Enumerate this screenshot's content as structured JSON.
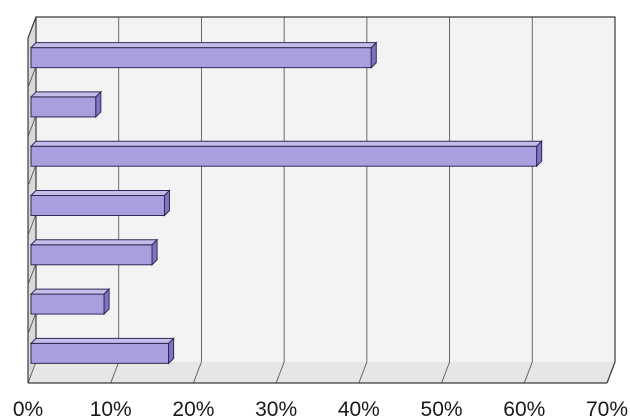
{
  "chart_data": {
    "type": "bar",
    "orientation": "horizontal",
    "style": "3d",
    "categories": [
      "",
      "",
      "",
      "",
      "",
      "",
      ""
    ],
    "values": [
      41.5,
      8.2,
      61.5,
      16.5,
      15,
      9.2,
      17
    ],
    "xlim": [
      0,
      70
    ],
    "xticks": [
      "0%",
      "10%",
      "20%",
      "30%",
      "40%",
      "50%",
      "60%",
      "70%"
    ],
    "title": "",
    "xlabel": "",
    "ylabel": "",
    "grid": "vertical",
    "legend": "none",
    "bar_color": "#a99fdf",
    "bar_top_color": "#c4bdeb",
    "bar_end_color": "#7f74c4",
    "back_wall_color": "#f3f3f3",
    "side_wall_color": "#d9d9d9",
    "floor_color": "#e6e6e6"
  }
}
